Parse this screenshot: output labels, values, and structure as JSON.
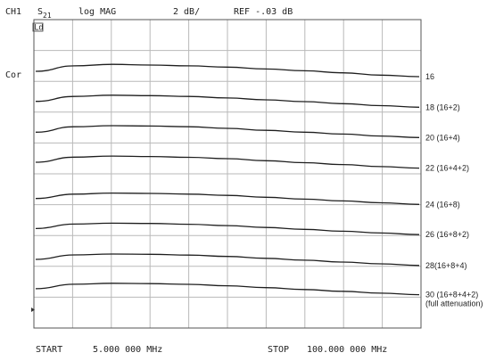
{
  "header": {
    "channel": "CH1",
    "param_main": "S",
    "param_sub": "21",
    "format": "log MAG",
    "scale": "2 dB/",
    "ref": "REF -.03 dB"
  },
  "annotations": {
    "marker_box": "Ld",
    "cor": "Cor"
  },
  "footer": {
    "start_label": "START",
    "start_value": "5.000 000 MHz",
    "stop_label": "STOP",
    "stop_value": "100.000 000 MHz"
  },
  "chart_data": {
    "type": "line",
    "x_axis": {
      "start_mhz": 5.0,
      "stop_mhz": 100.0,
      "divisions": 10
    },
    "y_axis": {
      "scale_db_per_div": 2,
      "reference_db": -0.03,
      "divisions": 10
    },
    "grid": true,
    "series": [
      {
        "label": "16",
        "note": "",
        "rel_db": [
          -0.45,
          -0.1,
          0.0,
          -0.05,
          -0.1,
          -0.18,
          -0.3,
          -0.42,
          -0.55,
          -0.7,
          -0.8
        ]
      },
      {
        "label": "18 (16+2)",
        "note": "",
        "rel_db": [
          -2.4,
          -2.08,
          -2.0,
          -2.03,
          -2.08,
          -2.18,
          -2.3,
          -2.42,
          -2.55,
          -2.68,
          -2.78
        ]
      },
      {
        "label": "20 (16+4)",
        "note": "",
        "rel_db": [
          -4.4,
          -4.05,
          -3.98,
          -4.0,
          -4.05,
          -4.15,
          -4.28,
          -4.4,
          -4.52,
          -4.65,
          -4.75
        ]
      },
      {
        "label": "22 (16+4+2)",
        "note": "",
        "rel_db": [
          -6.35,
          -6.02,
          -5.95,
          -5.98,
          -6.03,
          -6.12,
          -6.25,
          -6.38,
          -6.5,
          -6.63,
          -6.73
        ]
      },
      {
        "label": "24 (16+8)",
        "note": "",
        "rel_db": [
          -8.7,
          -8.42,
          -8.35,
          -8.37,
          -8.42,
          -8.5,
          -8.62,
          -8.74,
          -8.86,
          -8.98,
          -9.08
        ]
      },
      {
        "label": "26 (16+8+2)",
        "note": "",
        "rel_db": [
          -10.65,
          -10.36,
          -10.3,
          -10.32,
          -10.37,
          -10.46,
          -10.58,
          -10.7,
          -10.82,
          -10.94,
          -11.04
        ]
      },
      {
        "label": "28(16+8+4)",
        "note": "",
        "rel_db": [
          -12.65,
          -12.36,
          -12.3,
          -12.32,
          -12.37,
          -12.46,
          -12.58,
          -12.7,
          -12.82,
          -12.94,
          -13.04
        ]
      },
      {
        "label": "30 (16+8+4+2)",
        "note": "(full attenuation)",
        "rel_db": [
          -14.55,
          -14.26,
          -14.2,
          -14.22,
          -14.27,
          -14.36,
          -14.48,
          -14.6,
          -14.72,
          -14.84,
          -14.94
        ]
      }
    ]
  }
}
